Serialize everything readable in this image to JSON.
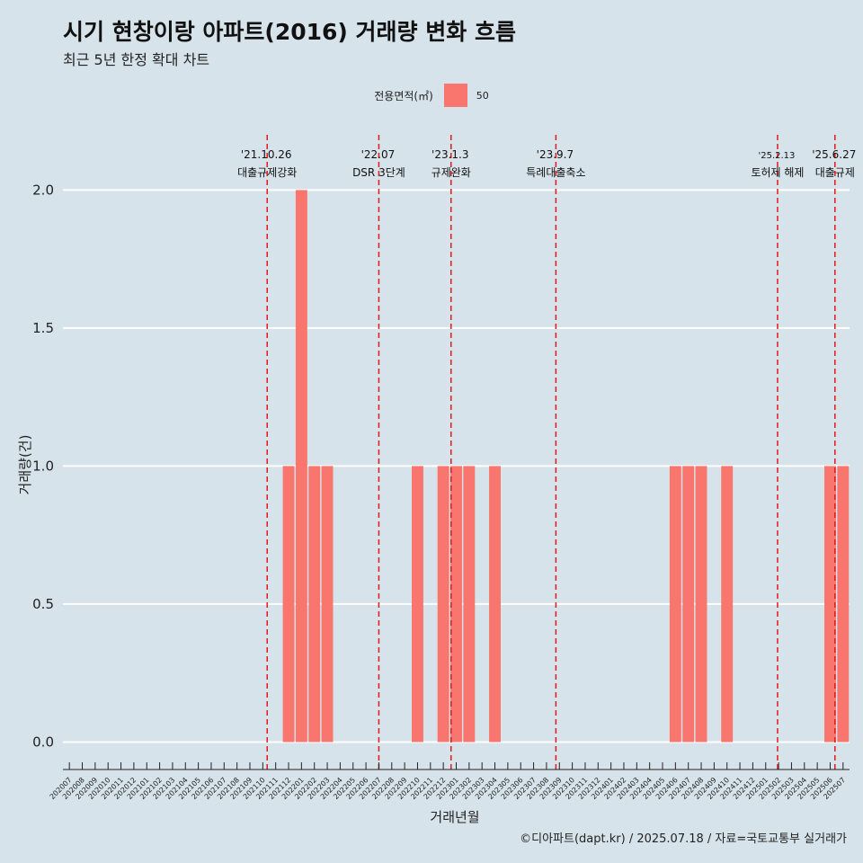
{
  "header": {
    "title": "시기 현창이랑 아파트(2016) 거래량 변화 흐름",
    "subtitle": "최근 5년 한정 확대 차트"
  },
  "legend": {
    "title": "전용면적(㎡)",
    "entries": [
      {
        "label": "50",
        "color": "#f8766d"
      }
    ]
  },
  "caption": "©디아파트(dapt.kr) / 2025.07.18 / 자료=국토교통부 실거래가",
  "colors": {
    "background": "#d6e3ea",
    "bar": "#f8766d",
    "grid": "#ffffff",
    "event_line": "#e31a1c"
  },
  "chart_data": {
    "type": "bar",
    "xlabel": "거래년월",
    "ylabel": "거래량(건)",
    "ylim": [
      -0.08,
      2.2
    ],
    "y_ticks": [
      "0.0",
      "0.5",
      "1.0",
      "1.5",
      "2.0"
    ],
    "grid": "horizontal-major",
    "legend_position": "top",
    "categories": [
      "202007",
      "202008",
      "202009",
      "202010",
      "202011",
      "202012",
      "202101",
      "202102",
      "202103",
      "202104",
      "202105",
      "202106",
      "202107",
      "202108",
      "202109",
      "202110",
      "202111",
      "202112",
      "202201",
      "202202",
      "202203",
      "202204",
      "202205",
      "202206",
      "202207",
      "202208",
      "202209",
      "202210",
      "202211",
      "202212",
      "202301",
      "202302",
      "202303",
      "202304",
      "202305",
      "202306",
      "202307",
      "202308",
      "202309",
      "202310",
      "202311",
      "202312",
      "202401",
      "202402",
      "202403",
      "202404",
      "202405",
      "202406",
      "202407",
      "202408",
      "202409",
      "202410",
      "202411",
      "202412",
      "202501",
      "202502",
      "202503",
      "202504",
      "202505",
      "202506",
      "202507"
    ],
    "series": [
      {
        "name": "50",
        "values": [
          0,
          0,
          0,
          0,
          0,
          0,
          0,
          0,
          0,
          0,
          0,
          0,
          0,
          0,
          0,
          0,
          0,
          1,
          2,
          1,
          1,
          0,
          0,
          0,
          0,
          0,
          0,
          1,
          0,
          1,
          1,
          1,
          0,
          1,
          0,
          0,
          0,
          0,
          0,
          0,
          0,
          0,
          0,
          0,
          0,
          0,
          0,
          1,
          1,
          1,
          0,
          1,
          0,
          0,
          0,
          0,
          0,
          0,
          0,
          1,
          1
        ]
      }
    ],
    "events": [
      {
        "date": "'21.10.26",
        "label": "대출규제강화",
        "month": "202110",
        "offset": 0.84
      },
      {
        "date": "'22.07",
        "label": "DSR 3단계",
        "month": "202207",
        "offset": 0.5
      },
      {
        "date": "'23.1.3",
        "label": "규제완화",
        "month": "202301",
        "offset": 0.1
      },
      {
        "date": "'23.9.7",
        "label": "특례대출축소",
        "month": "202309",
        "offset": 0.23
      },
      {
        "date": "'25.2.13",
        "label": "토허제 해제",
        "month": "202502",
        "offset": 0.42
      },
      {
        "date": "'25.6.27",
        "label": "대출규제",
        "month": "202506",
        "offset": 0.87
      }
    ]
  }
}
